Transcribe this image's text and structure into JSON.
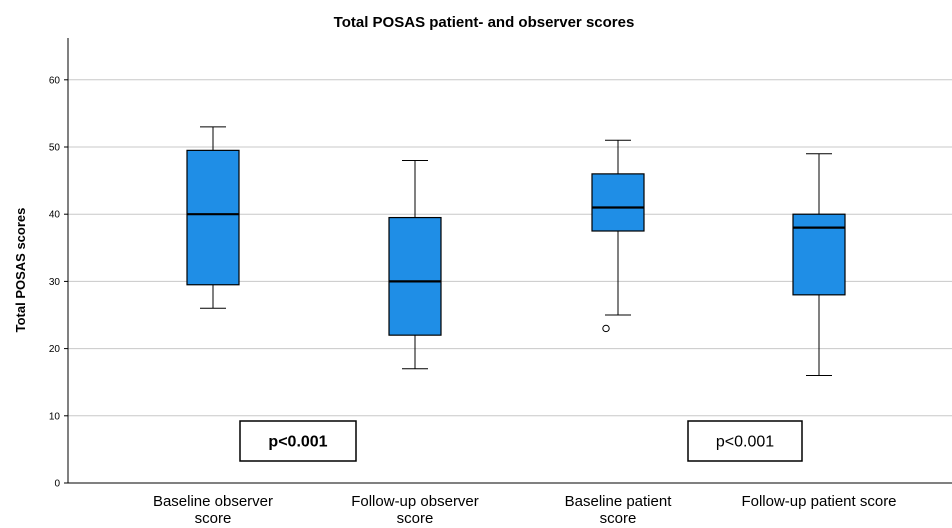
{
  "chart_data": {
    "type": "boxplot",
    "title": "Total POSAS patient- and observer scores",
    "ylabel": "Total POSAS scores",
    "xlabel": "",
    "ylim": [
      0,
      66
    ],
    "yticks": [
      "0",
      "10",
      "20",
      "30",
      "40",
      "50",
      "60"
    ],
    "grid": true,
    "box_color": "#1f8ee6",
    "categories": [
      [
        "Baseline  observer",
        "score"
      ],
      [
        "Follow-up observer",
        "score"
      ],
      [
        "Baseline patient",
        "score"
      ],
      [
        "Follow-up patient score"
      ]
    ],
    "boxes": [
      {
        "min": 26,
        "q1": 29.5,
        "median": 40,
        "q3": 49.5,
        "max": 53,
        "outliers": []
      },
      {
        "min": 17,
        "q1": 22,
        "median": 30,
        "q3": 39.5,
        "max": 48,
        "outliers": []
      },
      {
        "min": 25,
        "q1": 37.5,
        "median": 41,
        "q3": 46,
        "max": 51,
        "outliers": [
          23
        ]
      },
      {
        "min": 16,
        "q1": 28,
        "median": 38,
        "q3": 40,
        "max": 49,
        "outliers": []
      }
    ],
    "annotations": [
      {
        "text": "p<0.001",
        "bold": true
      },
      {
        "text": "p<0.001",
        "bold": false
      }
    ]
  }
}
